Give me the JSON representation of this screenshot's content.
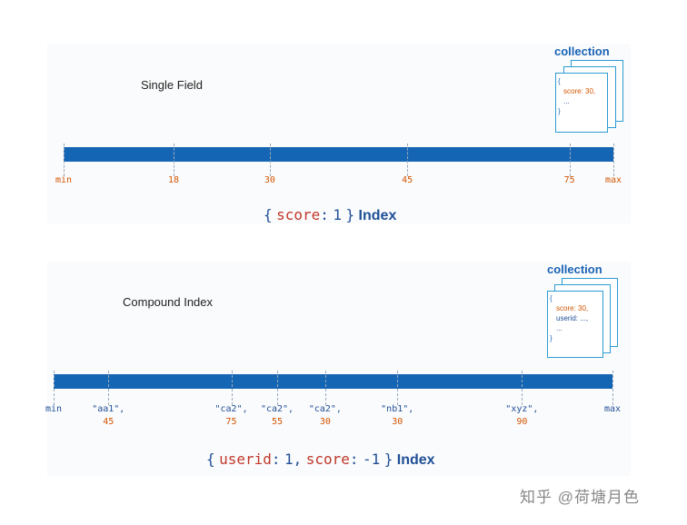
{
  "single_field": {
    "title": "Single Field",
    "collection_label": "collection",
    "doc_lines": [
      "{",
      "score: 30,",
      "...",
      "}"
    ],
    "axis": [
      {
        "label": "min",
        "pos": 0
      },
      {
        "label": "18",
        "pos": 0.2
      },
      {
        "label": "30",
        "pos": 0.375
      },
      {
        "label": "45",
        "pos": 0.625
      },
      {
        "label": "75",
        "pos": 0.92
      },
      {
        "label": "max",
        "pos": 1
      }
    ],
    "caption": {
      "open": "{",
      "key": "score",
      "colon": ":",
      "value": "1",
      "close": "}",
      "word": "Index"
    }
  },
  "compound": {
    "title": "Compound Index",
    "collection_label": "collection",
    "doc_lines": [
      "{",
      "score: 30,",
      "userid: ...,",
      "...",
      "}"
    ],
    "axis": [
      {
        "label": "min",
        "label2": "",
        "pos": 0
      },
      {
        "label": "\"aa1\",",
        "label2": "45",
        "pos": 0.098
      },
      {
        "label": "\"ca2\",",
        "label2": "75",
        "pos": 0.318
      },
      {
        "label": "\"ca2\",",
        "label2": "55",
        "pos": 0.4
      },
      {
        "label": "\"ca2\",",
        "label2": "30",
        "pos": 0.486
      },
      {
        "label": "\"nb1\",",
        "label2": "30",
        "pos": 0.615
      },
      {
        "label": "\"xyz\",",
        "label2": "90",
        "pos": 0.838
      },
      {
        "label": "max",
        "label2": "",
        "pos": 1
      }
    ],
    "caption": {
      "open": "{",
      "key1": "userid",
      "colon1": ":",
      "value1": "1,",
      "key2": "score",
      "colon2": ":",
      "value2": "-1",
      "close": "}",
      "word": "Index"
    }
  },
  "watermark": "知乎 @荷塘月色",
  "colors": {
    "bar": "#1565b5",
    "accent_orange": "#d35400",
    "accent_blue": "#1f4f96",
    "card_border": "#2d9bd2"
  }
}
